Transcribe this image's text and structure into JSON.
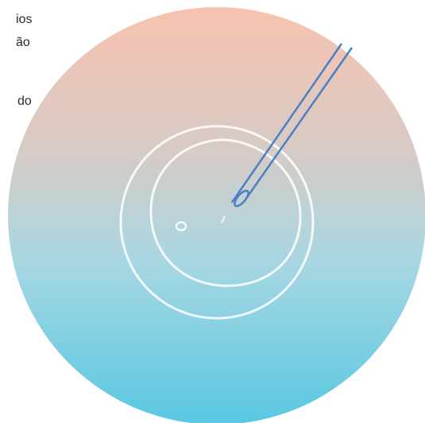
{
  "text_fragments": [
    "ios",
    "ão",
    "do"
  ]
}
